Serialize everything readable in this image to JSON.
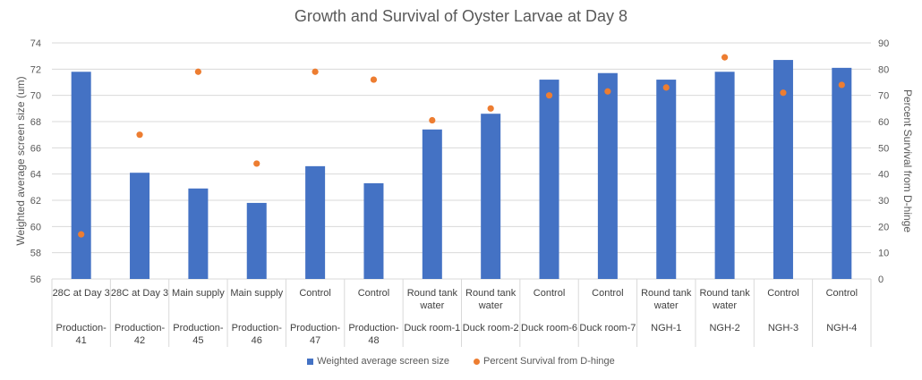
{
  "chart_data": {
    "type": "bar",
    "title": "Growth and Survival of Oyster Larvae at Day 8",
    "ylabel": "Weighted average screen size (um)",
    "y2label": "Percent Survival from D-hinge",
    "ylim": [
      56,
      74
    ],
    "yticks": [
      "56",
      "58",
      "60",
      "62",
      "64",
      "66",
      "68",
      "70",
      "72",
      "74"
    ],
    "y2lim": [
      0,
      90
    ],
    "y2ticks": [
      "0",
      "10",
      "20",
      "30",
      "40",
      "50",
      "60",
      "70",
      "80",
      "90"
    ],
    "grid": true,
    "legend_position": "bottom",
    "categories": [
      {
        "treatment": "28C at Day 3",
        "group": "Production-41"
      },
      {
        "treatment": "28C at Day 3",
        "group": "Production-42"
      },
      {
        "treatment": "Main supply",
        "group": "Production-45"
      },
      {
        "treatment": "Main supply",
        "group": "Production-46"
      },
      {
        "treatment": "Control",
        "group": "Production-47"
      },
      {
        "treatment": "Control",
        "group": "Production-48"
      },
      {
        "treatment": "Round tank water",
        "group": "Duck room-1"
      },
      {
        "treatment": "Round tank water",
        "group": "Duck room-2"
      },
      {
        "treatment": "Control",
        "group": "Duck room-6"
      },
      {
        "treatment": "Control",
        "group": "Duck room-7"
      },
      {
        "treatment": "Round tank water",
        "group": "NGH-1"
      },
      {
        "treatment": "Round tank water",
        "group": "NGH-2"
      },
      {
        "treatment": "Control",
        "group": "NGH-3"
      },
      {
        "treatment": "Control",
        "group": "NGH-4"
      }
    ],
    "series": [
      {
        "name": "Weighted average screen size",
        "type": "bar",
        "axis": "left",
        "color": "#4472C4",
        "values": [
          71.8,
          64.1,
          62.9,
          61.8,
          64.6,
          63.3,
          67.4,
          68.6,
          71.2,
          71.7,
          71.2,
          71.8,
          72.7,
          72.1
        ]
      },
      {
        "name": "Percent Survival from D-hinge",
        "type": "scatter",
        "axis": "right",
        "color": "#ED7D31",
        "values": [
          17,
          55,
          79,
          44,
          79,
          76,
          60.5,
          65,
          70,
          71.5,
          73,
          84.5,
          71,
          74
        ]
      }
    ]
  }
}
